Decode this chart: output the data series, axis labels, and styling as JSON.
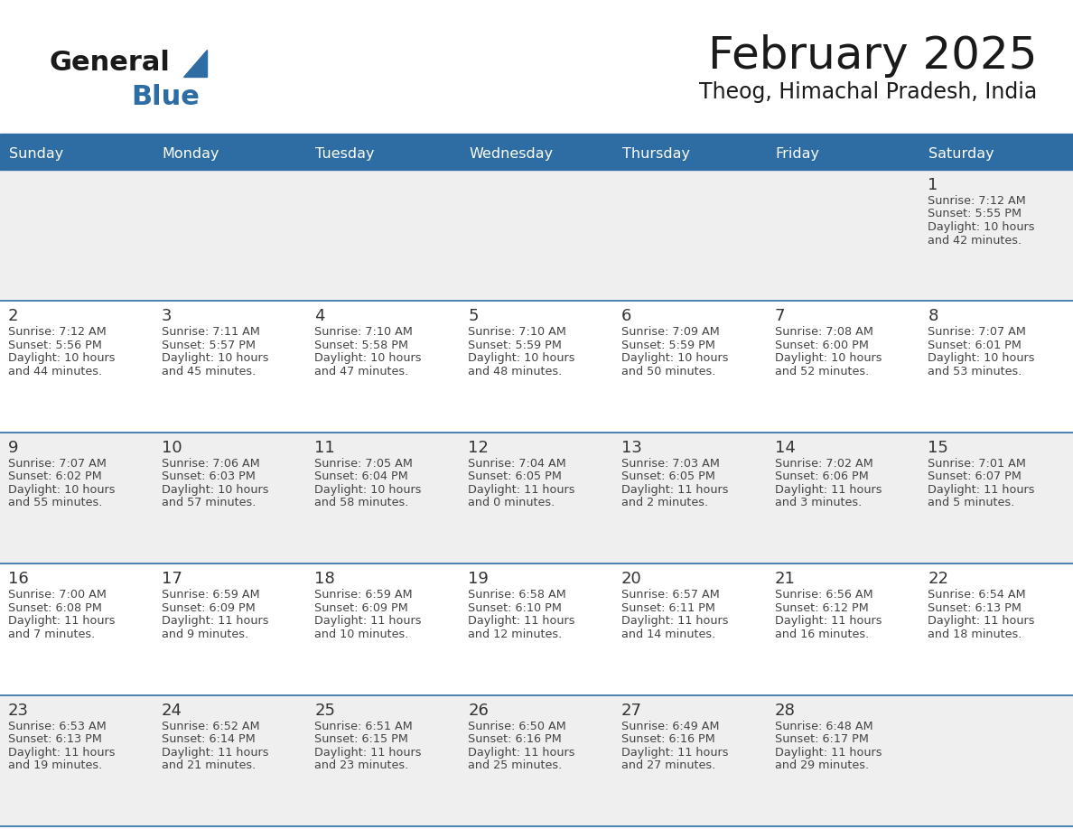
{
  "title": "February 2025",
  "subtitle": "Theog, Himachal Pradesh, India",
  "header_bg": "#2E6DA4",
  "header_text_color": "#FFFFFF",
  "cell_bg_light": "#EFEFEF",
  "cell_bg_white": "#FFFFFF",
  "text_color": "#444444",
  "day_number_color": "#333333",
  "line_color": "#2E6DA4",
  "days_of_week": [
    "Sunday",
    "Monday",
    "Tuesday",
    "Wednesday",
    "Thursday",
    "Friday",
    "Saturday"
  ],
  "calendar_data": [
    [
      null,
      null,
      null,
      null,
      null,
      null,
      {
        "day": 1,
        "sunrise": "7:12 AM",
        "sunset": "5:55 PM",
        "daylight": "10 hours\nand 42 minutes."
      }
    ],
    [
      {
        "day": 2,
        "sunrise": "7:12 AM",
        "sunset": "5:56 PM",
        "daylight": "10 hours\nand 44 minutes."
      },
      {
        "day": 3,
        "sunrise": "7:11 AM",
        "sunset": "5:57 PM",
        "daylight": "10 hours\nand 45 minutes."
      },
      {
        "day": 4,
        "sunrise": "7:10 AM",
        "sunset": "5:58 PM",
        "daylight": "10 hours\nand 47 minutes."
      },
      {
        "day": 5,
        "sunrise": "7:10 AM",
        "sunset": "5:59 PM",
        "daylight": "10 hours\nand 48 minutes."
      },
      {
        "day": 6,
        "sunrise": "7:09 AM",
        "sunset": "5:59 PM",
        "daylight": "10 hours\nand 50 minutes."
      },
      {
        "day": 7,
        "sunrise": "7:08 AM",
        "sunset": "6:00 PM",
        "daylight": "10 hours\nand 52 minutes."
      },
      {
        "day": 8,
        "sunrise": "7:07 AM",
        "sunset": "6:01 PM",
        "daylight": "10 hours\nand 53 minutes."
      }
    ],
    [
      {
        "day": 9,
        "sunrise": "7:07 AM",
        "sunset": "6:02 PM",
        "daylight": "10 hours\nand 55 minutes."
      },
      {
        "day": 10,
        "sunrise": "7:06 AM",
        "sunset": "6:03 PM",
        "daylight": "10 hours\nand 57 minutes."
      },
      {
        "day": 11,
        "sunrise": "7:05 AM",
        "sunset": "6:04 PM",
        "daylight": "10 hours\nand 58 minutes."
      },
      {
        "day": 12,
        "sunrise": "7:04 AM",
        "sunset": "6:05 PM",
        "daylight": "11 hours\nand 0 minutes."
      },
      {
        "day": 13,
        "sunrise": "7:03 AM",
        "sunset": "6:05 PM",
        "daylight": "11 hours\nand 2 minutes."
      },
      {
        "day": 14,
        "sunrise": "7:02 AM",
        "sunset": "6:06 PM",
        "daylight": "11 hours\nand 3 minutes."
      },
      {
        "day": 15,
        "sunrise": "7:01 AM",
        "sunset": "6:07 PM",
        "daylight": "11 hours\nand 5 minutes."
      }
    ],
    [
      {
        "day": 16,
        "sunrise": "7:00 AM",
        "sunset": "6:08 PM",
        "daylight": "11 hours\nand 7 minutes."
      },
      {
        "day": 17,
        "sunrise": "6:59 AM",
        "sunset": "6:09 PM",
        "daylight": "11 hours\nand 9 minutes."
      },
      {
        "day": 18,
        "sunrise": "6:59 AM",
        "sunset": "6:09 PM",
        "daylight": "11 hours\nand 10 minutes."
      },
      {
        "day": 19,
        "sunrise": "6:58 AM",
        "sunset": "6:10 PM",
        "daylight": "11 hours\nand 12 minutes."
      },
      {
        "day": 20,
        "sunrise": "6:57 AM",
        "sunset": "6:11 PM",
        "daylight": "11 hours\nand 14 minutes."
      },
      {
        "day": 21,
        "sunrise": "6:56 AM",
        "sunset": "6:12 PM",
        "daylight": "11 hours\nand 16 minutes."
      },
      {
        "day": 22,
        "sunrise": "6:54 AM",
        "sunset": "6:13 PM",
        "daylight": "11 hours\nand 18 minutes."
      }
    ],
    [
      {
        "day": 23,
        "sunrise": "6:53 AM",
        "sunset": "6:13 PM",
        "daylight": "11 hours\nand 19 minutes."
      },
      {
        "day": 24,
        "sunrise": "6:52 AM",
        "sunset": "6:14 PM",
        "daylight": "11 hours\nand 21 minutes."
      },
      {
        "day": 25,
        "sunrise": "6:51 AM",
        "sunset": "6:15 PM",
        "daylight": "11 hours\nand 23 minutes."
      },
      {
        "day": 26,
        "sunrise": "6:50 AM",
        "sunset": "6:16 PM",
        "daylight": "11 hours\nand 25 minutes."
      },
      {
        "day": 27,
        "sunrise": "6:49 AM",
        "sunset": "6:16 PM",
        "daylight": "11 hours\nand 27 minutes."
      },
      {
        "day": 28,
        "sunrise": "6:48 AM",
        "sunset": "6:17 PM",
        "daylight": "11 hours\nand 29 minutes."
      },
      null
    ]
  ],
  "logo_text_general": "General",
  "logo_text_blue": "Blue",
  "logo_color_general": "#1a1a1a",
  "logo_color_blue": "#2E6DA4",
  "logo_triangle_color": "#2E6DA4",
  "figsize": [
    11.88,
    9.18
  ],
  "dpi": 100
}
